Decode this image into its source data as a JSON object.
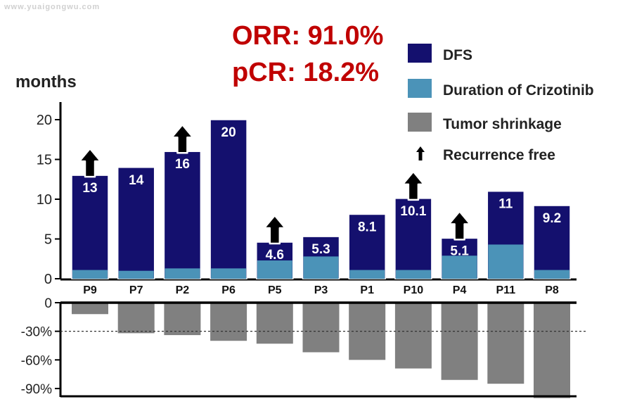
{
  "watermark": "www.yuaigongwu.com",
  "stats": {
    "orr": "ORR: 91.0%",
    "pcr": "pCR: 18.2%"
  },
  "colors": {
    "dfs": "#14106e",
    "crizotinib": "#4b93b8",
    "shrinkage": "#808080",
    "stats_text": "#c00000",
    "axis": "#000000"
  },
  "legend": [
    {
      "key": "dfs",
      "label": "DFS",
      "icon": "square-dfs"
    },
    {
      "key": "crizotinib",
      "label": "Duration of Crizotinib",
      "icon": "square-crizotinib"
    },
    {
      "key": "shrinkage",
      "label": "Tumor shrinkage",
      "icon": "square-shrinkage"
    },
    {
      "key": "recurrence",
      "label": "Recurrence free",
      "icon": "up-arrow-icon"
    }
  ],
  "chart_data": {
    "type": "bar",
    "categories": [
      "P9",
      "P7",
      "P2",
      "P6",
      "P5",
      "P3",
      "P1",
      "P10",
      "P4",
      "P11",
      "P8"
    ],
    "top_panel": {
      "ylabel": "months",
      "ylim": [
        0,
        22
      ],
      "yticks": [
        "0",
        "5",
        "10",
        "15",
        "20"
      ],
      "series": [
        {
          "name": "DFS",
          "values": [
            13,
            14,
            16,
            20,
            4.6,
            5.3,
            8.1,
            10.1,
            5.1,
            11,
            9.2
          ],
          "labels": [
            "13",
            "14",
            "16",
            "20",
            "4.6",
            "5.3",
            "8.1",
            "10.1",
            "5.1",
            "11",
            "9.2"
          ]
        },
        {
          "name": "Duration of Crizotinib",
          "values": [
            1.1,
            1.0,
            1.3,
            1.3,
            2.3,
            2.8,
            1.1,
            1.1,
            2.9,
            4.3,
            1.1
          ]
        }
      ],
      "recurrence_free": [
        true,
        false,
        true,
        false,
        true,
        false,
        false,
        true,
        true,
        false,
        false
      ]
    },
    "bottom_panel": {
      "series": [
        {
          "name": "Tumor shrinkage",
          "values": [
            -12,
            -32,
            -34,
            -40,
            -43,
            -52,
            -60,
            -69,
            -81,
            -85,
            -100
          ]
        }
      ],
      "ylim": [
        -100,
        0
      ],
      "yticks": [
        "0",
        "-30%",
        "-60%",
        "-90%"
      ],
      "reference_line": -30
    }
  }
}
